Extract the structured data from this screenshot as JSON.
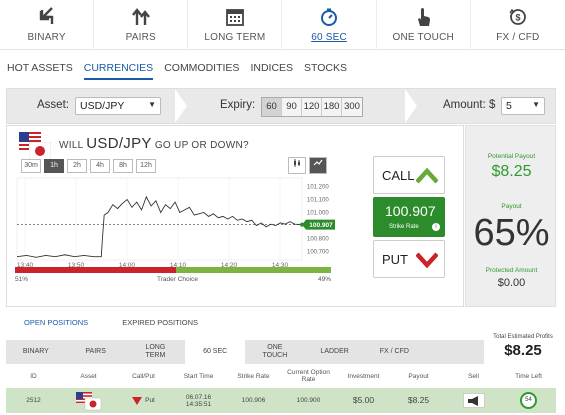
{
  "modes": [
    {
      "label": "BINARY",
      "icon": "binary-arrows-icon"
    },
    {
      "label": "PAIRS",
      "icon": "pairs-arrows-icon"
    },
    {
      "label": "LONG TERM",
      "icon": "calendar-icon"
    },
    {
      "label": "60 SEC",
      "icon": "stopwatch-icon",
      "active": true
    },
    {
      "label": "ONE TOUCH",
      "icon": "touch-hand-icon"
    },
    {
      "label": "FX / CFD",
      "icon": "fx-coin-icon"
    }
  ],
  "asset_tabs": [
    "HOT ASSETS",
    "CURRENCIES",
    "COMMODITIES",
    "INDICES",
    "STOCKS"
  ],
  "asset_tab_active": "CURRENCIES",
  "control": {
    "asset_label": "Asset:",
    "asset_value": "USD/JPY",
    "expiry_label": "Expiry:",
    "expiry_options": [
      "60",
      "90",
      "120",
      "180",
      "300"
    ],
    "expiry_active": "60",
    "amount_label": "Amount: $",
    "amount_value": "5"
  },
  "question": {
    "prefix": "WILL",
    "symbol": "USD/JPY",
    "suffix": "GO UP OR DOWN?"
  },
  "timeframes": [
    "30m",
    "1h",
    "2h",
    "4h",
    "8h",
    "12h"
  ],
  "timeframe_active": "1h",
  "chart_data": {
    "type": "line",
    "x_ticks": [
      "13:40",
      "13:50",
      "14:00",
      "14:10",
      "14:20",
      "14:30"
    ],
    "y_ticks": [
      "101.200",
      "101.100",
      "101.000",
      "100.900",
      "100.800",
      "100.700"
    ],
    "ylim": [
      100.65,
      101.25
    ],
    "current_value_label": "100.907",
    "x": [
      0,
      2,
      4,
      6,
      8,
      10,
      12,
      14,
      16,
      17.6,
      17.8,
      18.2,
      19,
      20,
      21,
      22,
      23,
      24,
      25,
      26,
      27,
      28,
      29,
      30,
      31,
      32,
      33,
      34,
      35,
      36,
      37,
      38,
      39,
      40,
      41,
      42,
      43,
      44,
      45,
      46,
      47,
      48,
      49,
      50,
      51,
      52,
      53,
      54,
      55,
      56,
      57,
      58,
      59.5
    ],
    "values": [
      100.66,
      100.67,
      100.655,
      100.67,
      100.66,
      100.675,
      100.66,
      100.67,
      100.66,
      100.66,
      100.78,
      100.98,
      101.0,
      101.06,
      101.03,
      101.07,
      101.1,
      101.04,
      101.08,
      101.02,
      101.12,
      101.05,
      101.09,
      101.0,
      101.06,
      101.03,
      101.08,
      101.0,
      101.02,
      101.04,
      100.98,
      100.99,
      101.0,
      100.97,
      100.99,
      100.96,
      100.97,
      100.95,
      100.97,
      100.94,
      100.95,
      100.93,
      100.94,
      100.9,
      100.92,
      100.89,
      100.91,
      100.9,
      100.92,
      100.91,
      100.93,
      100.91,
      100.907
    ],
    "strike_level": 100.907,
    "split_percent": [
      51,
      49
    ],
    "split_left_label": "51%",
    "split_mid_label": "Trader Choice",
    "split_right_label": "49%",
    "colors": {
      "down": "#c8242a",
      "up": "#7cb342",
      "line": "#333333"
    }
  },
  "call_label": "CALL",
  "put_label": "PUT",
  "strike": {
    "value": "100.907",
    "label": "Strike Rate"
  },
  "payout": {
    "potential_label": "Potential Payout",
    "potential_value": "$8.25",
    "payout_label": "Payout",
    "payout_value": "65%",
    "protected_label": "Protected Amount",
    "protected_value": "$0.00"
  },
  "positions": {
    "tabs": [
      "OPEN POSITIONS",
      "EXPIRED POSITIONS"
    ],
    "total_label": "Total Estimated Profits",
    "total_value": "$8.25",
    "filter_tabs": [
      "BINARY",
      "PAIRS",
      "LONG TERM",
      "60 SEC",
      "ONE TOUCH",
      "LADDER",
      "FX / CFD"
    ],
    "filter_active": "60 SEC",
    "columns": [
      "ID",
      "Asset",
      "Call/Put",
      "Start Time",
      "Strike Rate",
      "Current Option Rate",
      "Investment",
      "Payout",
      "Sell",
      "Time Left"
    ],
    "rows": [
      {
        "id": "2512",
        "call_put": "Put",
        "start_date": "06.07.16",
        "start_time": "14:35:51",
        "strike": "100.906",
        "current": "100.900",
        "investment": "$5.00",
        "payout": "$8.25",
        "time_left": "54"
      }
    ]
  }
}
